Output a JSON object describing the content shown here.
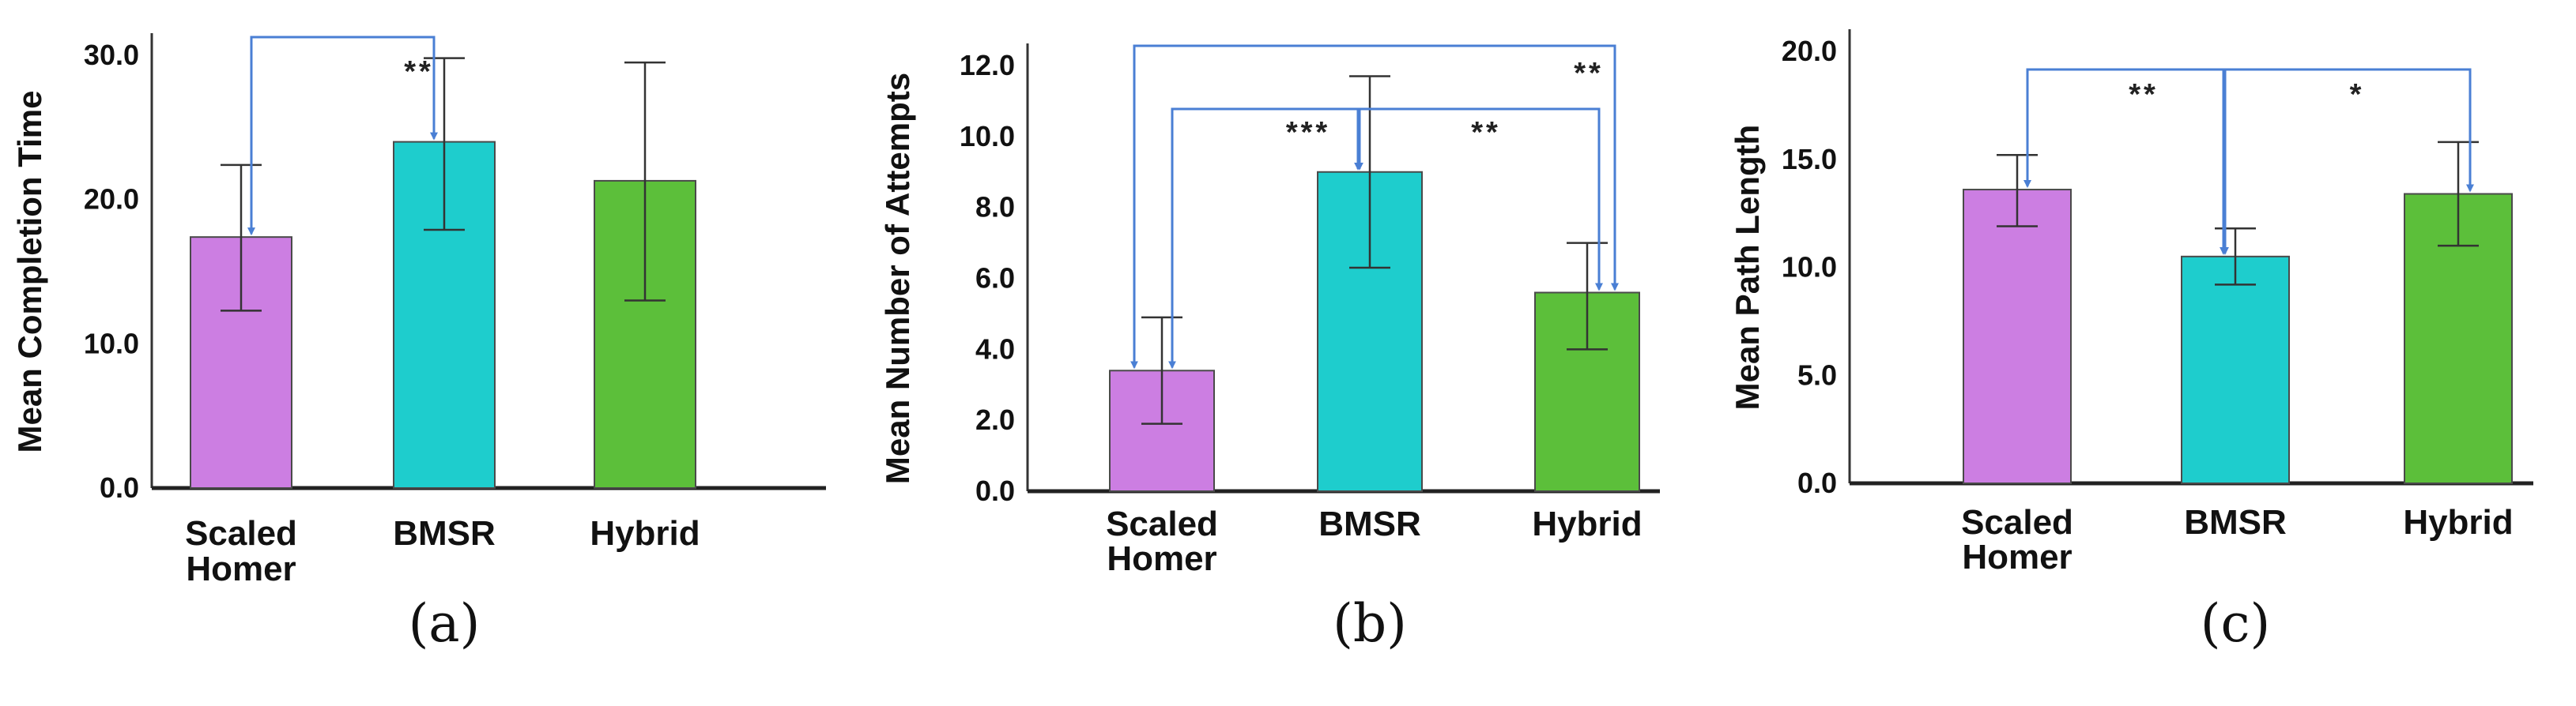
{
  "chart_data": [
    {
      "type": "bar",
      "panel_label": "(a)",
      "ylabel": "Mean Completion Time",
      "categories": [
        [
          "Scaled",
          "Homer"
        ],
        [
          "BMSR"
        ],
        [
          "Hybrid"
        ]
      ],
      "values": [
        17.4,
        24.0,
        21.3
      ],
      "error_low": [
        12.3,
        17.9,
        13.0
      ],
      "error_high": [
        22.4,
        29.8,
        29.5
      ],
      "ylim": [
        0,
        30
      ],
      "yticks": [
        "0.0",
        "10.0",
        "20.0",
        "30.0"
      ],
      "ytick_values": [
        0,
        10,
        20,
        30
      ],
      "colors": [
        "#cc7ee2",
        "#1ecdcd",
        "#5cbf3a"
      ],
      "comparisons": [
        {
          "from": 0,
          "to": 1,
          "label": "**"
        }
      ]
    },
    {
      "type": "bar",
      "panel_label": "(b)",
      "ylabel": "Mean Number of Attempts",
      "categories": [
        [
          "Scaled",
          "Homer"
        ],
        [
          "BMSR"
        ],
        [
          "Hybrid"
        ]
      ],
      "values": [
        3.4,
        9.0,
        5.6
      ],
      "error_low": [
        1.9,
        6.3,
        4.0
      ],
      "error_high": [
        4.9,
        11.7,
        7.0
      ],
      "ylim": [
        0,
        12
      ],
      "yticks": [
        "0.0",
        "2.0",
        "4.0",
        "6.0",
        "8.0",
        "10.0",
        "12.0"
      ],
      "ytick_values": [
        0,
        2,
        4,
        6,
        8,
        10,
        12
      ],
      "colors": [
        "#cc7ee2",
        "#1ecdcd",
        "#5cbf3a"
      ],
      "comparisons": [
        {
          "from": 0,
          "to": 1,
          "label": "***"
        },
        {
          "from": 1,
          "to": 2,
          "label": "**"
        },
        {
          "from": 0,
          "to": 2,
          "label": "**"
        }
      ]
    },
    {
      "type": "bar",
      "panel_label": "(c)",
      "ylabel": "Mean Path Length",
      "categories": [
        [
          "Scaled",
          "Homer"
        ],
        [
          "BMSR"
        ],
        [
          "Hybrid"
        ]
      ],
      "values": [
        13.6,
        10.5,
        13.4
      ],
      "error_low": [
        11.9,
        9.2,
        11.0
      ],
      "error_high": [
        15.2,
        11.8,
        15.8
      ],
      "ylim": [
        0,
        20
      ],
      "yticks": [
        "0.0",
        "5.0",
        "10.0",
        "15.0",
        "20.0"
      ],
      "ytick_values": [
        0,
        5,
        10,
        15,
        20
      ],
      "colors": [
        "#cc7ee2",
        "#1ecdcd",
        "#5cbf3a"
      ],
      "comparisons": [
        {
          "from": 0,
          "to": 1,
          "label": "**"
        },
        {
          "from": 1,
          "to": 2,
          "label": "*"
        }
      ]
    }
  ]
}
